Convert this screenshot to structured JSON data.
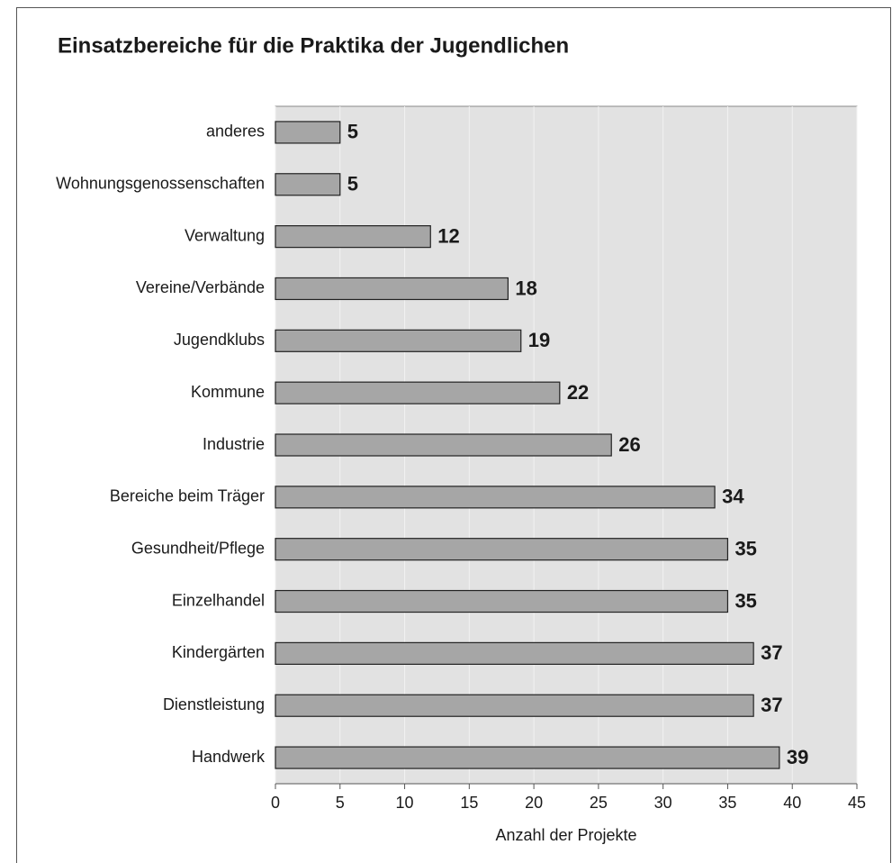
{
  "chart_data": {
    "type": "bar",
    "orientation": "horizontal",
    "title": "Einsatzbereiche für die Praktika der Jugendlichen",
    "xlabel": "Anzahl der Projekte",
    "categories": [
      "anderes",
      "Wohnungsgenossenschaften",
      "Verwaltung",
      "Vereine/Verbände",
      "Jugendklubs",
      "Kommune",
      "Industrie",
      "Bereiche beim Träger",
      "Gesundheit/Pflege",
      "Einzelhandel",
      "Kindergärten",
      "Dienstleistung",
      "Handwerk"
    ],
    "values": [
      5,
      5,
      12,
      18,
      19,
      22,
      26,
      34,
      35,
      35,
      37,
      37,
      39
    ],
    "color": "#a6a6a6",
    "xlim": [
      0,
      45
    ],
    "xticks": [
      0,
      5,
      10,
      15,
      20,
      25,
      30,
      35,
      40,
      45
    ],
    "grid": true
  }
}
